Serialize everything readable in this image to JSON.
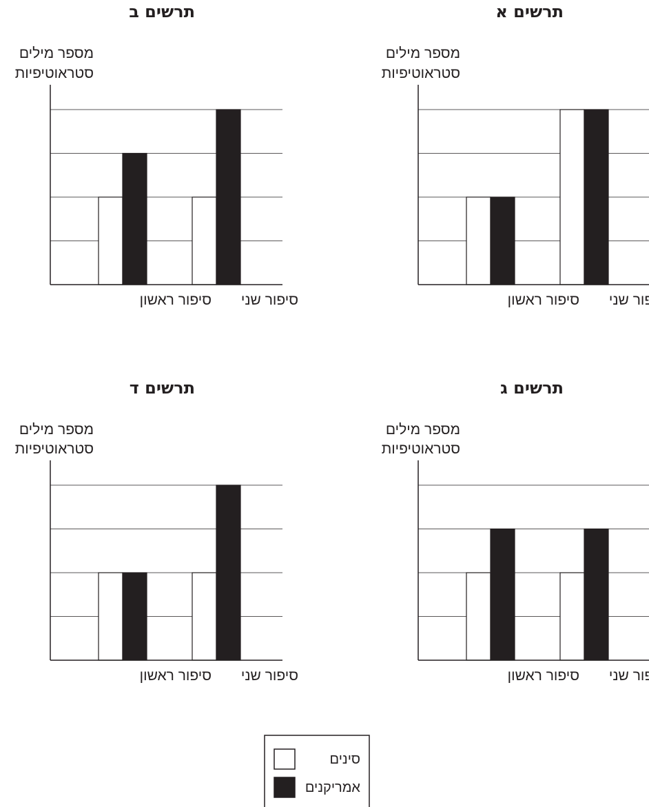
{
  "chart_data": [
    {
      "type": "bar",
      "title": "תרשים א",
      "ylabel_lines": [
        "מספר מילים",
        "סטראוטיפיות"
      ],
      "categories": [
        "סיפור ראשון",
        "סיפור שני"
      ],
      "series": [
        {
          "name": "סינים",
          "values": [
            2,
            4
          ]
        },
        {
          "name": "אמריקנים",
          "values": [
            2,
            4
          ]
        }
      ],
      "ylim": [
        0,
        4
      ],
      "grid": true
    },
    {
      "type": "bar",
      "title": "תרשים ב",
      "ylabel_lines": [
        "מספר מילים",
        "סטראוטיפיות"
      ],
      "categories": [
        "סיפור ראשון",
        "סיפור שני"
      ],
      "series": [
        {
          "name": "סינים",
          "values": [
            2,
            2
          ]
        },
        {
          "name": "אמריקנים",
          "values": [
            3,
            4
          ]
        }
      ],
      "ylim": [
        0,
        4
      ],
      "grid": true
    },
    {
      "type": "bar",
      "title": "תרשים ג",
      "ylabel_lines": [
        "מספר מילים",
        "סטראוטיפיות"
      ],
      "categories": [
        "סיפור ראשון",
        "סיפור שני"
      ],
      "series": [
        {
          "name": "סינים",
          "values": [
            2,
            2
          ]
        },
        {
          "name": "אמריקנים",
          "values": [
            3,
            3
          ]
        }
      ],
      "ylim": [
        0,
        4
      ],
      "grid": true
    },
    {
      "type": "bar",
      "title": "תרשים ד",
      "ylabel_lines": [
        "מספר מילים",
        "סטראוטיפיות"
      ],
      "categories": [
        "סיפור ראשון",
        "סיפור שני"
      ],
      "series": [
        {
          "name": "סינים",
          "values": [
            2,
            2
          ]
        },
        {
          "name": "אמריקנים",
          "values": [
            2,
            4
          ]
        }
      ],
      "ylim": [
        0,
        4
      ],
      "grid": true
    }
  ],
  "legend": {
    "items": [
      {
        "label": "סינים",
        "color": "#ffffff"
      },
      {
        "label": "אמריקנים",
        "color": "#231f20"
      }
    ]
  },
  "colors": {
    "ink": "#231f20",
    "grid": "#231f20",
    "chinese_bar": "#ffffff",
    "american_bar": "#231f20"
  }
}
